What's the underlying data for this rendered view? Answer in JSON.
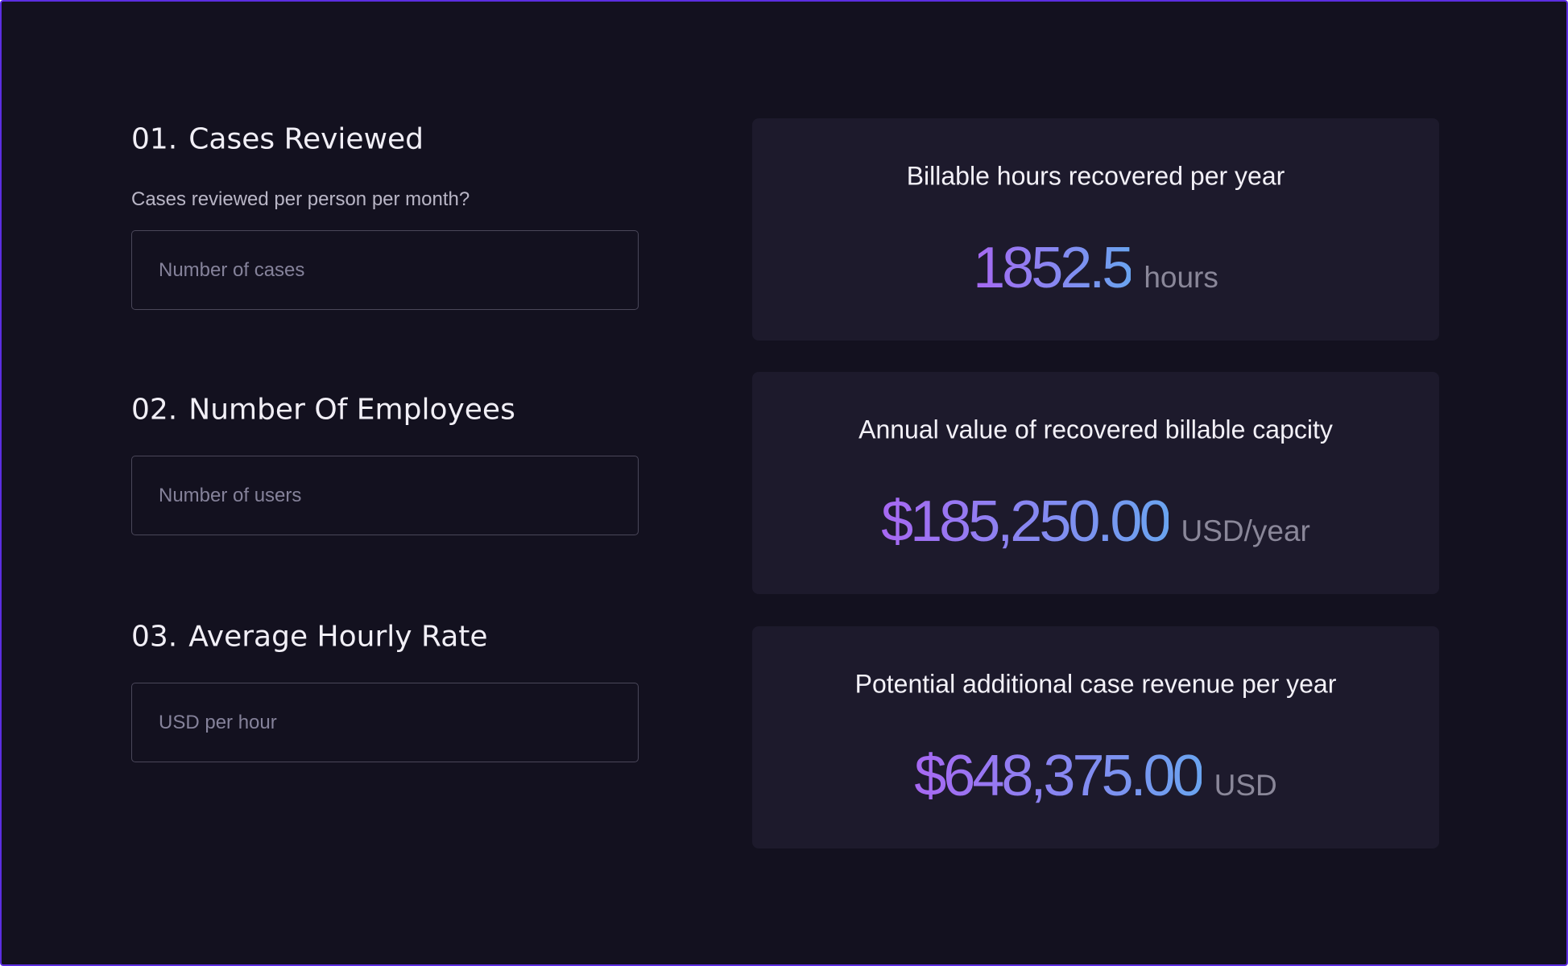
{
  "inputs": [
    {
      "number": "01.",
      "title": "Cases Reviewed",
      "question": "Cases reviewed per person per month?",
      "placeholder": "Number of cases"
    },
    {
      "number": "02.",
      "title": "Number Of Employees",
      "placeholder": "Number of users"
    },
    {
      "number": "03.",
      "title": "Average Hourly Rate",
      "placeholder": "USD per hour"
    }
  ],
  "results": [
    {
      "label": "Billable hours recovered per year",
      "value": "1852.5",
      "unit": "hours"
    },
    {
      "label": "Annual value of recovered billable capcity",
      "value": "$185,250.00",
      "unit": "USD/year"
    },
    {
      "label": "Potential additional case revenue per year",
      "value": "$648,375.00",
      "unit": "USD"
    }
  ]
}
